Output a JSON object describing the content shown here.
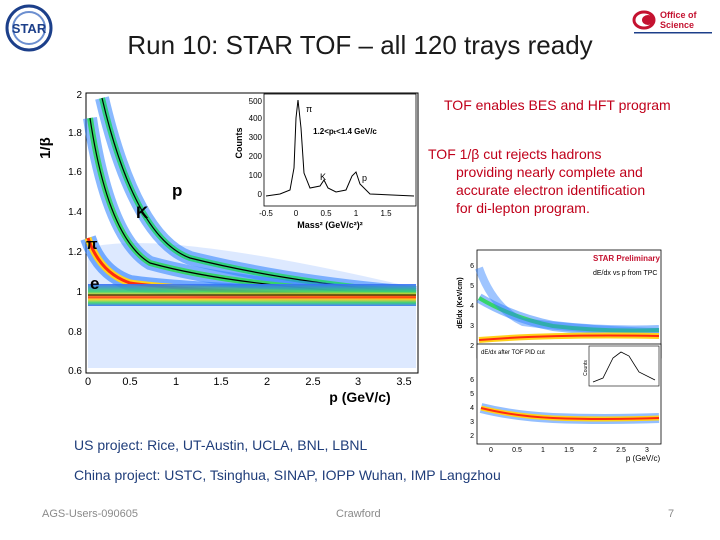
{
  "title": "Run 10: STAR TOF – all 120 trays ready",
  "logos": {
    "star": "STAR",
    "office_line1": "Office of",
    "office_line2": "Science"
  },
  "main_plot": {
    "ylabel": "1/β",
    "xlabel": "p (GeV/c)",
    "xticks": [
      "0",
      "0.5",
      "1",
      "1.5",
      "2",
      "2.5",
      "3",
      "3.5"
    ],
    "yticks": [
      "0.6",
      "0.8",
      "1",
      "1.2",
      "1.4",
      "1.6",
      "1.8",
      "2"
    ],
    "labels": {
      "e": "e",
      "pi": "π",
      "K": "K",
      "p": "p"
    }
  },
  "inset_plot": {
    "ylabel": "Counts",
    "xlabel": "Mass² (GeV/c²)²",
    "yticks": [
      "0",
      "100",
      "200",
      "300",
      "400",
      "500"
    ],
    "xticks": [
      "-0.5",
      "0",
      "0.5",
      "1",
      "1.5"
    ],
    "range_label": "1.2<pₜ<1.4 GeV/c",
    "peaks": {
      "pi": "π",
      "K": "K",
      "p": "p"
    }
  },
  "dedx_plot": {
    "preliminary": "STAR Preliminary",
    "subtitle": "dE/dx vs p from TPC",
    "ylabel": "dE/dx (KeV/cm)",
    "xlabel": "p (GeV/c)",
    "yticks_top": [
      "2",
      "3",
      "4",
      "5",
      "6"
    ],
    "yticks_bottom": [
      "2",
      "3",
      "4",
      "5",
      "6"
    ],
    "xticks": [
      "0",
      "0.5",
      "1",
      "1.5",
      "2",
      "2.5",
      "3"
    ],
    "lower_label": "dE/dx after TOF PID cut",
    "inset_label": "Counts"
  },
  "bullets": [
    {
      "text": "TOF enables BES and HFT program"
    },
    {
      "lines": [
        "TOF 1/β cut rejects hadrons",
        "providing nearly complete and",
        "accurate electron identification",
        "for di-lepton program."
      ]
    }
  ],
  "projects": {
    "us_label": "US project:",
    "us_text": " Rice, UT-Austin, UCLA, BNL, LBNL",
    "china_label": "China project:",
    "china_text": " USTC, Tsinghua, SINAP, IOPP Wuhan, IMP Langzhou"
  },
  "footer": {
    "left": "AGS-Users-090605",
    "center": "Crawford",
    "page": "7"
  },
  "colors": {
    "title": "#1b1b1b",
    "bullet": "#c0001a",
    "project": "#1f3d7a",
    "footer": "#8a8a8a"
  }
}
